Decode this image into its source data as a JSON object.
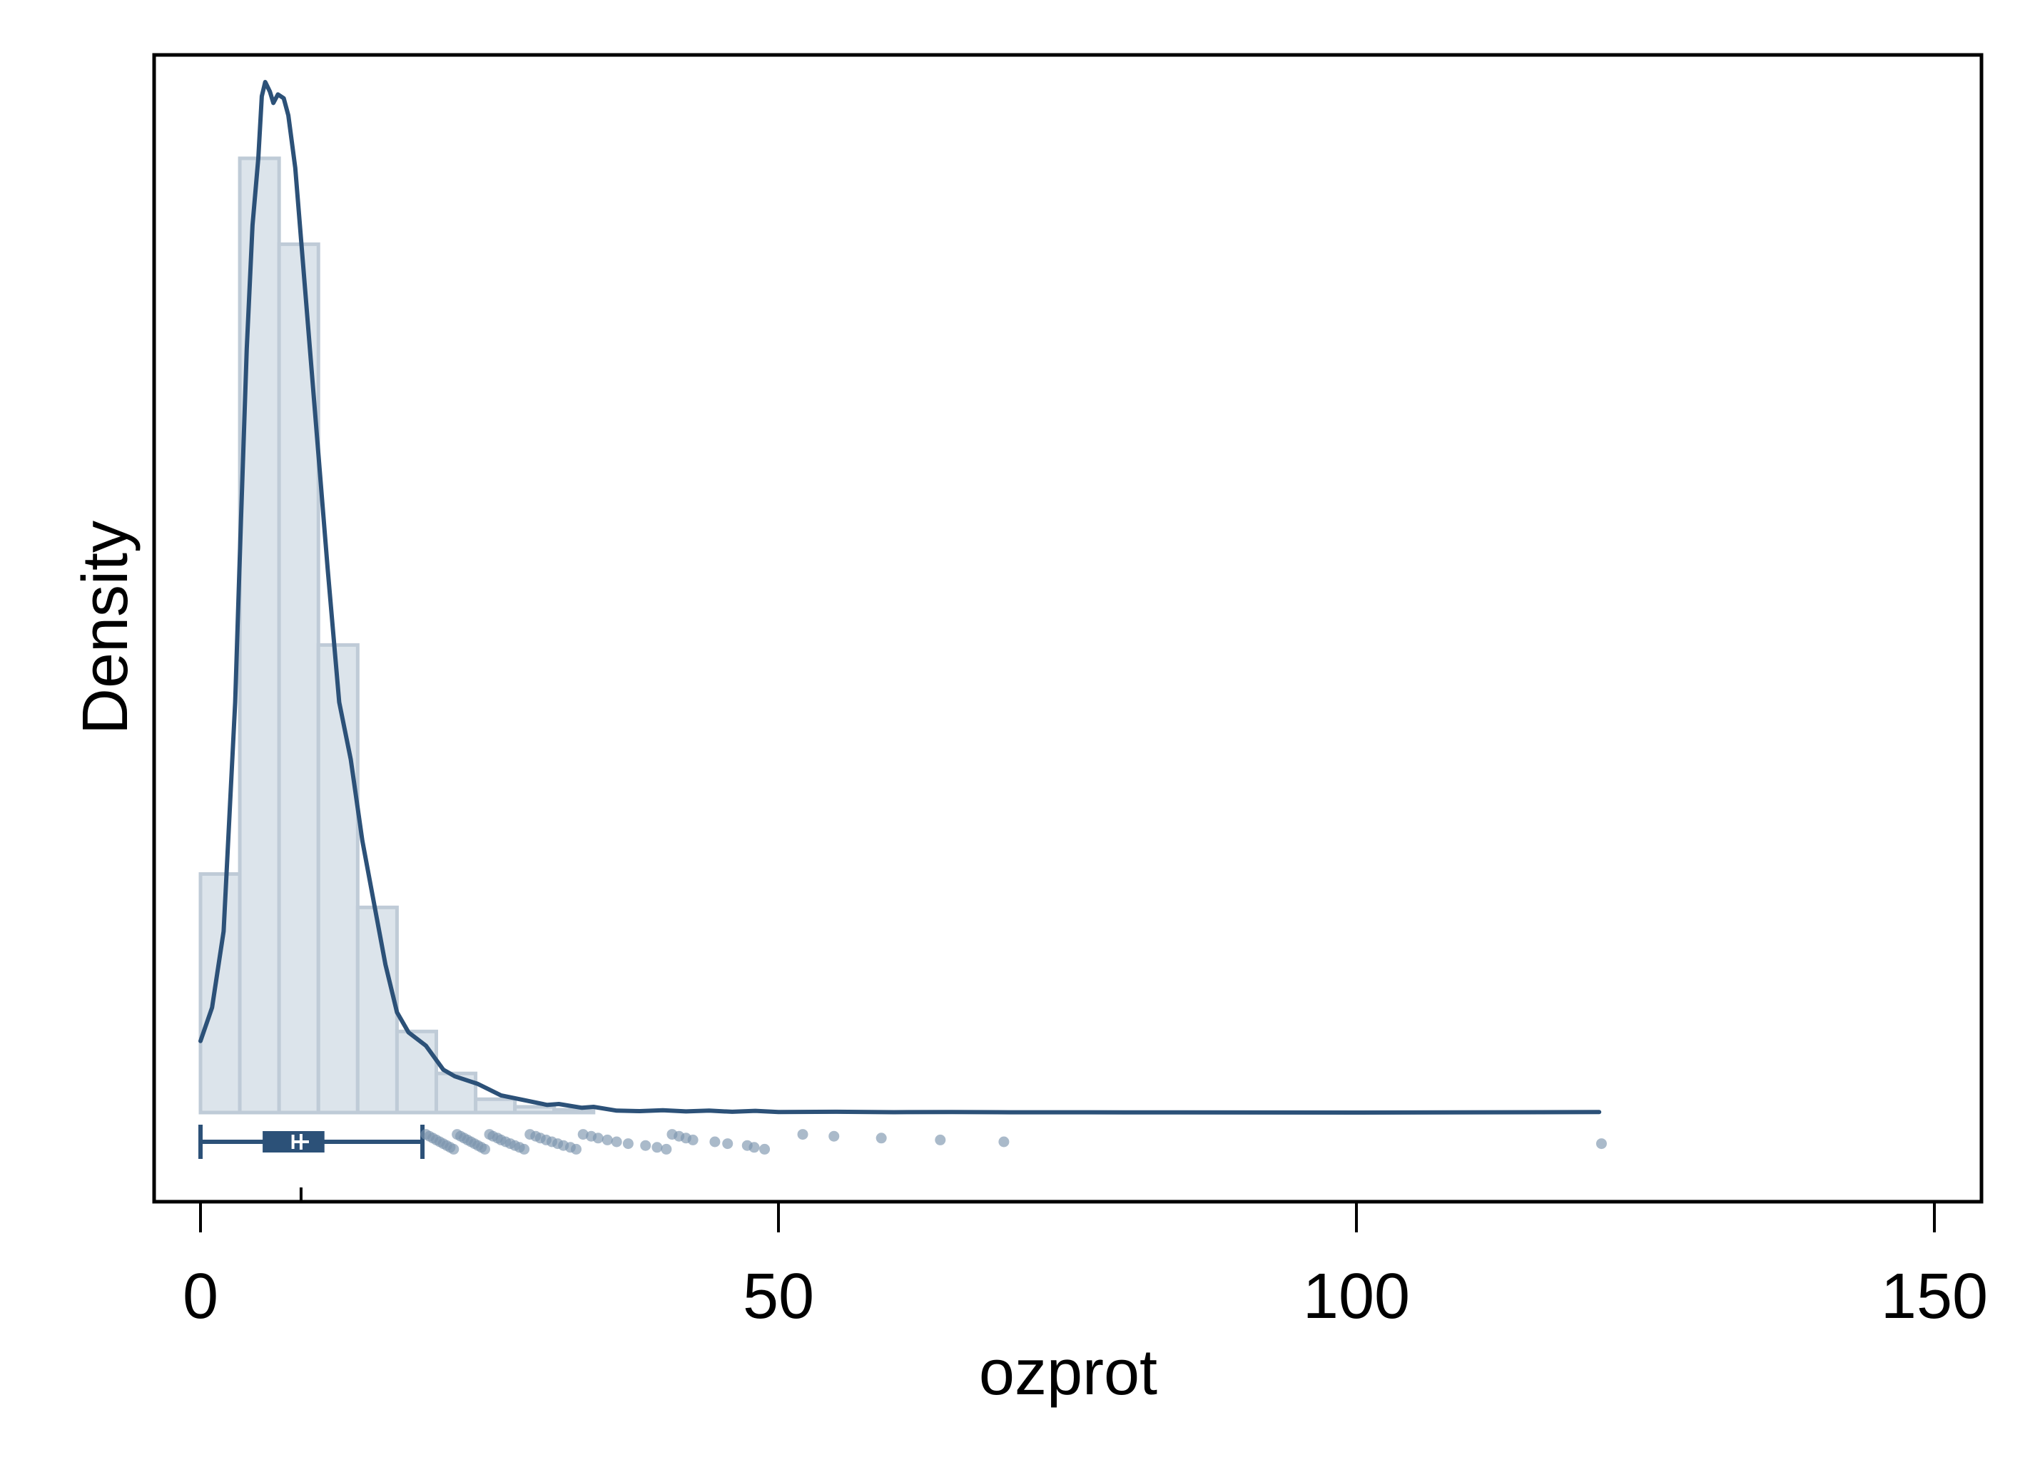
{
  "chart_data": {
    "type": "histogram",
    "xlabel": "ozprot",
    "ylabel": "Density",
    "xlim": [
      -4,
      154
    ],
    "x_ticks": [
      0,
      50,
      100,
      150
    ],
    "x_tick_labels": [
      "0",
      "50",
      "100",
      "150"
    ],
    "grid": false,
    "legend": "none",
    "histogram": {
      "bin_width": 3.4,
      "bin_start": 0,
      "relative_heights": [
        0.25,
        1.0,
        0.91,
        0.49,
        0.215,
        0.085,
        0.041,
        0.014,
        0.006,
        0.003
      ]
    },
    "density_curve": {
      "relative_points": [
        [
          0,
          0.075
        ],
        [
          1,
          0.11
        ],
        [
          2,
          0.19
        ],
        [
          3,
          0.43
        ],
        [
          3.5,
          0.62
        ],
        [
          4,
          0.8
        ],
        [
          4.5,
          0.93
        ],
        [
          5,
          1.0
        ],
        [
          5.3,
          1.065
        ],
        [
          5.6,
          1.08
        ],
        [
          6,
          1.07
        ],
        [
          6.3,
          1.058
        ],
        [
          6.7,
          1.067
        ],
        [
          7.2,
          1.063
        ],
        [
          7.6,
          1.045
        ],
        [
          8.2,
          0.99
        ],
        [
          9,
          0.87
        ],
        [
          10,
          0.72
        ],
        [
          11,
          0.57
        ],
        [
          12,
          0.43
        ],
        [
          13,
          0.37
        ],
        [
          14,
          0.285
        ],
        [
          15,
          0.22
        ],
        [
          16,
          0.155
        ],
        [
          17,
          0.105
        ],
        [
          18,
          0.084
        ],
        [
          19.5,
          0.07
        ],
        [
          21,
          0.045
        ],
        [
          22,
          0.038
        ],
        [
          24,
          0.03
        ],
        [
          26,
          0.018
        ],
        [
          28,
          0.013
        ],
        [
          30,
          0.008
        ],
        [
          31,
          0.009
        ],
        [
          33,
          0.005
        ],
        [
          34,
          0.006
        ],
        [
          36,
          0.002
        ],
        [
          38,
          0.0015
        ],
        [
          40,
          0.0025
        ],
        [
          42,
          0.0012
        ],
        [
          44,
          0.002
        ],
        [
          46,
          0.0008
        ],
        [
          48,
          0.0018
        ],
        [
          50,
          0.0005
        ],
        [
          55,
          0.0008
        ],
        [
          60,
          0.0004
        ],
        [
          65,
          0.0006
        ],
        [
          70,
          0.0003
        ],
        [
          80,
          0.0002
        ],
        [
          100,
          0.0
        ],
        [
          121,
          0.0005
        ]
      ]
    },
    "boxplot": {
      "min": 0,
      "q1": 5.5,
      "median": 8,
      "mean": 8.7,
      "q3": 10.6,
      "upper_whisker": 19.2,
      "outliers": [
        19.5,
        19.8,
        20.1,
        20.4,
        20.7,
        21.0,
        21.3,
        21.6,
        21.9,
        22.2,
        22.5,
        22.8,
        23.1,
        23.4,
        23.7,
        24.0,
        24.3,
        24.6,
        25.0,
        25.3,
        25.7,
        26.0,
        26.4,
        26.8,
        27.2,
        27.6,
        28.0,
        28.5,
        29.0,
        29.4,
        29.9,
        30.4,
        30.9,
        31.4,
        32.0,
        32.5,
        33.1,
        33.8,
        34.4,
        35.2,
        36.0,
        37.0,
        38.5,
        39.5,
        40.3,
        40.8,
        41.4,
        42.0,
        42.6,
        44.5,
        45.6,
        47.3,
        47.9,
        48.8,
        52.1,
        54.8,
        58.9,
        64.0,
        69.5,
        121.2
      ]
    }
  },
  "colors": {
    "line": "#2c5178",
    "bar_fill": "#dce4eb",
    "bar_stroke": "#bfcbd7",
    "outlier": "#7d95ad",
    "frame": "#000000"
  }
}
